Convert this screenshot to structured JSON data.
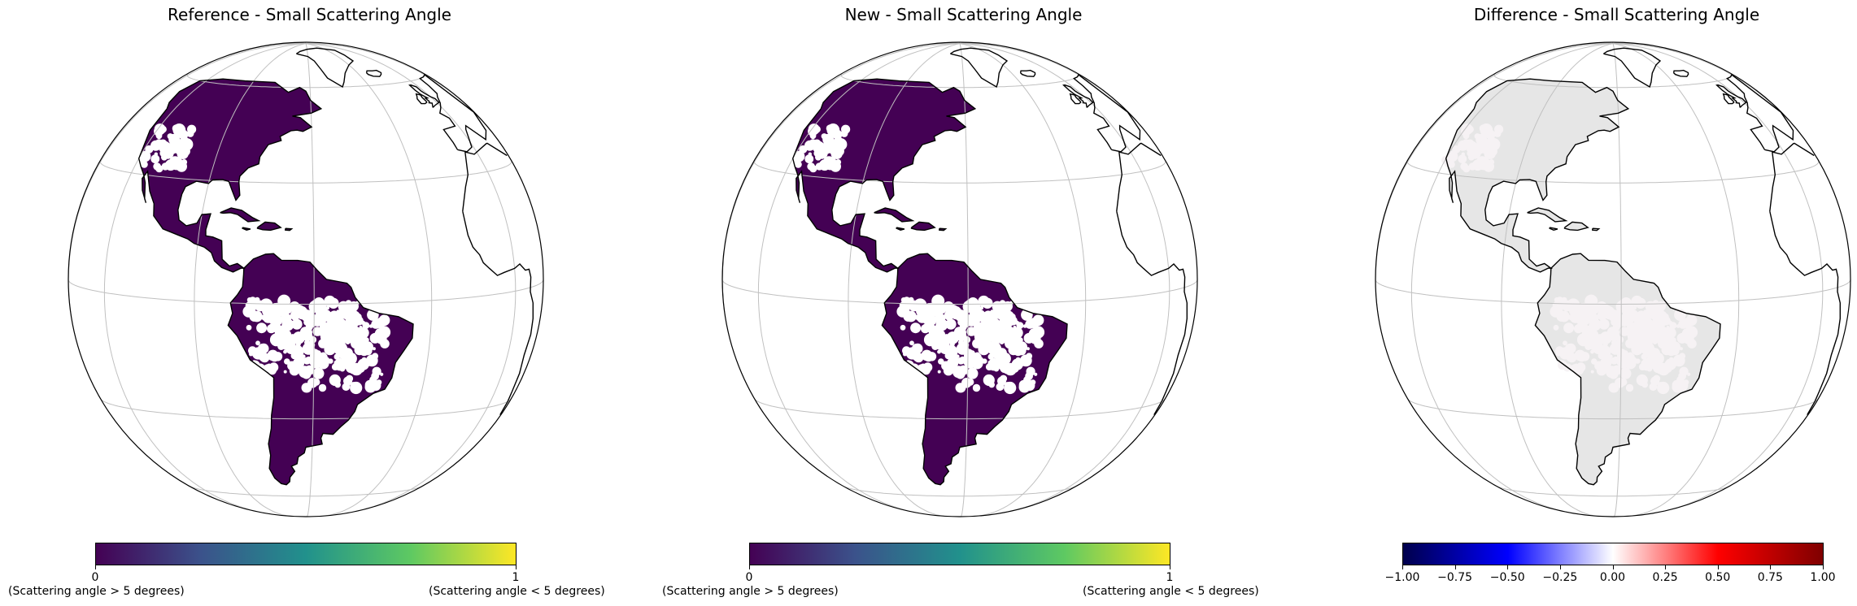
{
  "panels": [
    {
      "title": "Reference - Small Scattering Angle",
      "fill_color": "#440154",
      "colorbar": {
        "colormap": "viridis",
        "ticks": [
          "0",
          "1"
        ],
        "left_desc": "(Scattering angle > 5 degrees)",
        "right_desc": "(Scattering angle < 5 degrees)"
      }
    },
    {
      "title": "New - Small Scattering Angle",
      "fill_color": "#440154",
      "colorbar": {
        "colormap": "viridis",
        "ticks": [
          "0",
          "1"
        ],
        "left_desc": "(Scattering angle > 5 degrees)",
        "right_desc": "(Scattering angle < 5 degrees)"
      }
    },
    {
      "title": "Difference - Small Scattering Angle",
      "fill_color": "#c8c8c8",
      "colorbar": {
        "colormap": "seismic",
        "ticks": [
          "−1.00",
          "−0.75",
          "−0.50",
          "−0.25",
          "0.00",
          "0.25",
          "0.50",
          "0.75",
          "1.00"
        ]
      }
    }
  ],
  "colors": {
    "viridis": [
      "#440154",
      "#3b528b",
      "#21918c",
      "#5ec962",
      "#fde725"
    ],
    "seismic": [
      "#00004c",
      "#0000ff",
      "#ffffff",
      "#ff0000",
      "#7f0000"
    ],
    "coastline": "#000000",
    "gridline": "#c0c0c0"
  }
}
